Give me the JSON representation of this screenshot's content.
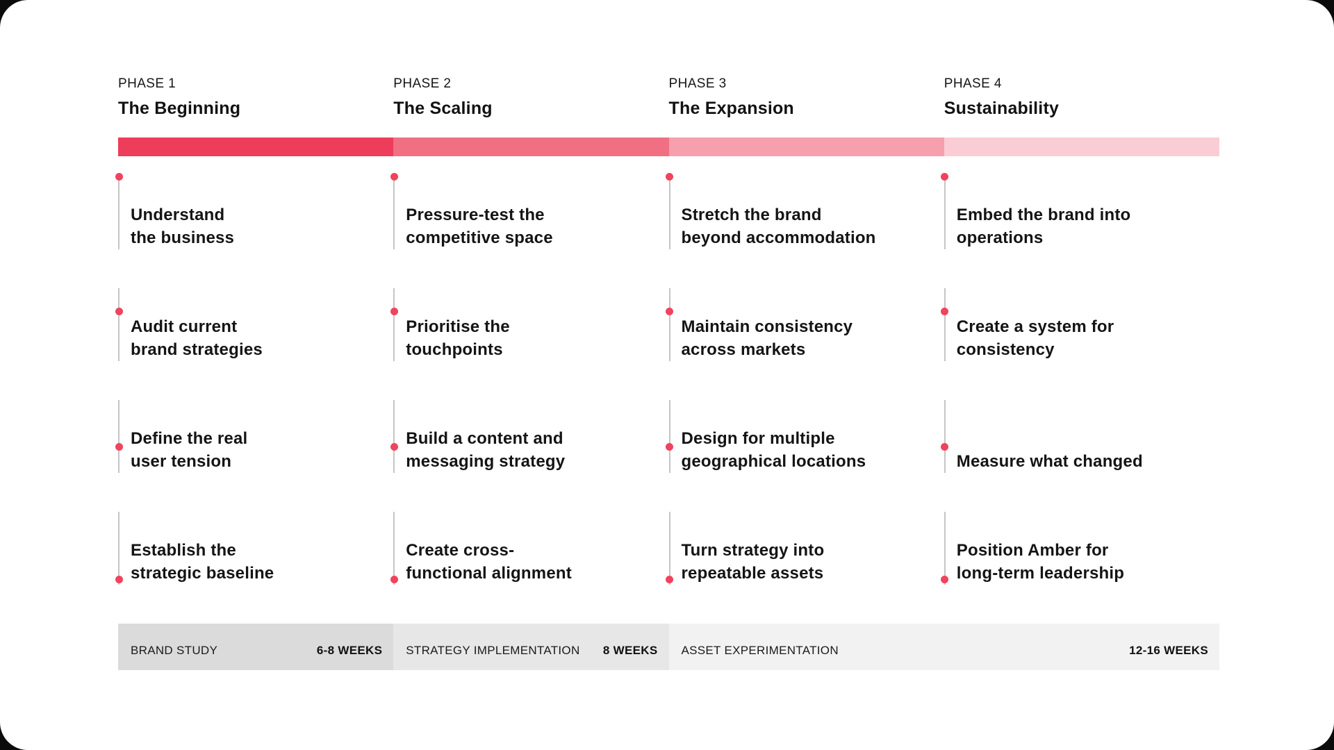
{
  "canvas": {
    "bg": "#ffffff",
    "outside_bg": "#0b0b0b"
  },
  "colors": {
    "dot": "#f0435e",
    "rail": "#c5c5c5",
    "text": "#141414"
  },
  "phases": [
    {
      "label": "PHASE 1",
      "title": "The Beginning",
      "bar_color": "#ee3c5b",
      "items": [
        {
          "line1": "Understand",
          "line2": "the business"
        },
        {
          "line1": "Audit current",
          "line2": "brand strategies"
        },
        {
          "line1": "Define the real",
          "line2": "user tension"
        },
        {
          "line1": "Establish the",
          "line2": "strategic baseline"
        }
      ]
    },
    {
      "label": "PHASE 2",
      "title": "The Scaling",
      "bar_color": "#f16f82",
      "items": [
        {
          "line1": "Pressure-test the",
          "line2": "competitive space"
        },
        {
          "line1": "Prioritise the",
          "line2": "touchpoints"
        },
        {
          "line1": "Build a content and",
          "line2": "messaging strategy"
        },
        {
          "line1": "Create cross-",
          "line2": "functional alignment"
        }
      ]
    },
    {
      "label": "PHASE 3",
      "title": "The Expansion",
      "bar_color": "#f5a0ac",
      "items": [
        {
          "line1": "Stretch the brand",
          "line2": "beyond accommodation"
        },
        {
          "line1": "Maintain consistency",
          "line2": "across markets"
        },
        {
          "line1": "Design for multiple",
          "line2": "geographical locations"
        },
        {
          "line1": "Turn strategy into",
          "line2": "repeatable assets"
        }
      ]
    },
    {
      "label": "PHASE 4",
      "title": "Sustainability",
      "bar_color": "#facdd5",
      "items": [
        {
          "line1": "Embed the brand into",
          "line2": "operations"
        },
        {
          "line1": "Create a system for",
          "line2": "consistency"
        },
        {
          "line1": "Measure what changed",
          "line2": ""
        },
        {
          "line1": "Position Amber for",
          "line2": "long-term leadership"
        }
      ]
    }
  ],
  "footer": {
    "segments": [
      {
        "label": "BRAND STUDY",
        "duration": "6-8 WEEKS",
        "bg": "#dbdbdb"
      },
      {
        "label": "STRATEGY IMPLEMENTATION",
        "duration": "8 WEEKS",
        "bg": "#e7e7e7"
      },
      {
        "label": "ASSET EXPERIMENTATION",
        "duration": "12-16 WEEKS",
        "bg": "#f2f2f2"
      }
    ]
  }
}
